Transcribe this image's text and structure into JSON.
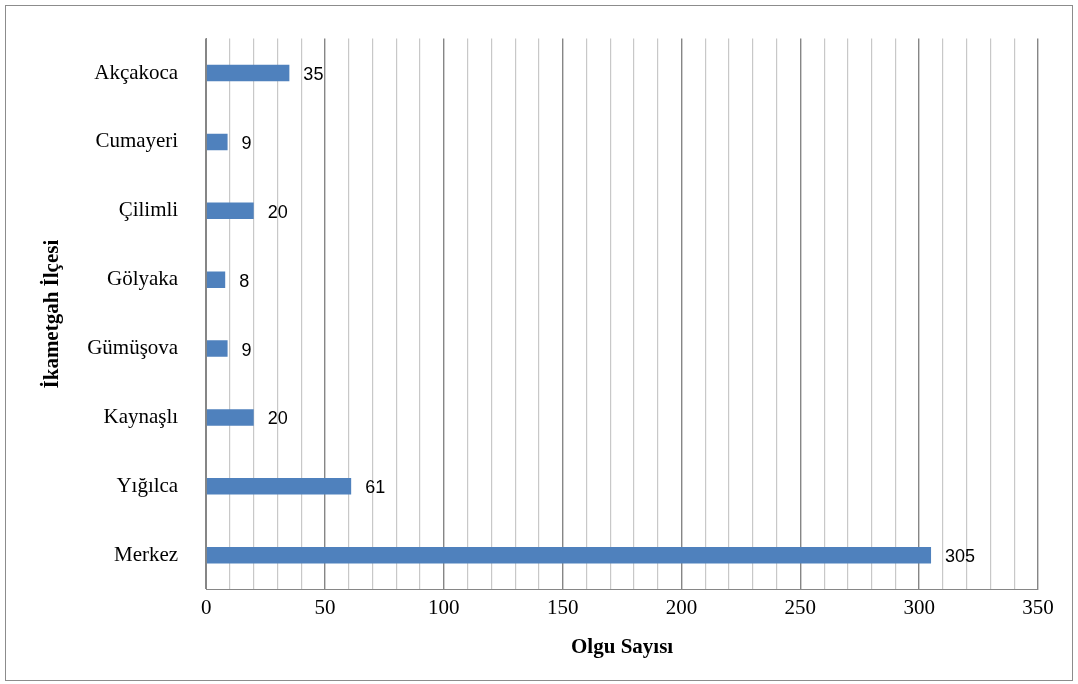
{
  "chart_data": {
    "type": "bar",
    "orientation": "horizontal",
    "xlabel": "Olgu Sayısı",
    "ylabel": "İkametgah İlçesi",
    "categories": [
      "Akçakoca",
      "Cumayeri",
      "Çilimli",
      "Gölyaka",
      "Gümüşova",
      "Kaynaşlı",
      "Yığılca",
      "Merkez"
    ],
    "values": [
      35,
      9,
      20,
      8,
      9,
      20,
      61,
      305
    ],
    "color": "#4f81bd",
    "data_labels": true,
    "grid": "x",
    "legend": false,
    "xlim": [
      0,
      350
    ],
    "xticks": [
      0,
      {
        "value": 10,
        "label": null
      },
      {
        "value": 20,
        "label": null
      },
      {
        "value": 30,
        "label": null
      },
      {
        "value": 40,
        "label": null
      },
      50,
      {
        "value": 60,
        "label": null
      },
      {
        "value": 70,
        "label": null
      },
      {
        "value": 80,
        "label": null
      },
      {
        "value": 90,
        "label": null
      },
      100,
      {
        "value": 110,
        "label": null
      },
      {
        "value": 120,
        "label": null
      },
      {
        "value": 130,
        "label": null
      },
      {
        "value": 140,
        "label": null
      },
      150,
      {
        "value": 160,
        "label": null
      },
      {
        "value": 170,
        "label": null
      },
      {
        "value": 180,
        "label": null
      },
      {
        "value": 190,
        "label": null
      },
      200,
      {
        "value": 210,
        "label": null
      },
      {
        "value": 220,
        "label": null
      },
      {
        "value": 230,
        "label": null
      },
      {
        "value": 240,
        "label": null
      },
      250,
      {
        "value": 260,
        "label": null
      },
      {
        "value": 270,
        "label": null
      },
      {
        "value": 280,
        "label": null
      },
      {
        "value": 290,
        "label": null
      },
      300,
      {
        "value": 310,
        "label": null
      },
      {
        "value": 320,
        "label": null
      },
      {
        "value": 330,
        "label": null
      },
      {
        "value": 340,
        "label": null
      },
      350
    ]
  }
}
